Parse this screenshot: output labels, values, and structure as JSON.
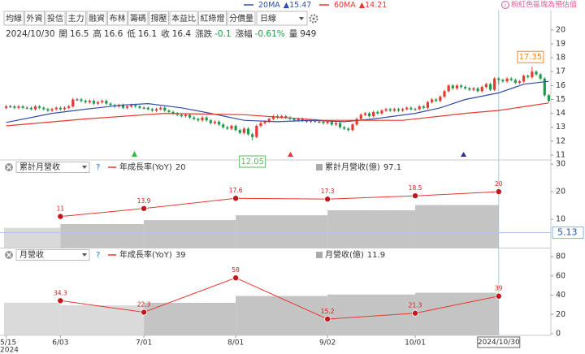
{
  "toolbar": {
    "tabs": [
      "均線",
      "外資",
      "投信",
      "主力",
      "融資",
      "布林",
      "籌碼",
      "撐壓",
      "本益比",
      "紅綠燈",
      "分價量"
    ],
    "interval": "日線"
  },
  "notice": "粉紅色區塊為預估值",
  "chart_data": [
    {
      "type": "candlestick",
      "info": {
        "date": "2024/10/30",
        "items": [
          {
            "label": "開",
            "value": 16.5
          },
          {
            "label": "高",
            "value": 16.6
          },
          {
            "label": "低",
            "value": 16.1
          },
          {
            "label": "收",
            "value": 16.4
          },
          {
            "label": "漲跌",
            "value": -0.1
          },
          {
            "label": "漲幅",
            "value": -0.61,
            "value_label": "-0.61%"
          },
          {
            "label": "量",
            "value": 949
          }
        ]
      },
      "up_color": "#e8382f",
      "down_color": "#1e9b4a",
      "x": [
        0,
        1,
        2,
        3,
        4,
        5,
        6,
        7,
        8,
        9,
        10,
        11,
        12,
        13,
        14,
        15,
        16,
        17,
        18,
        19,
        20,
        21,
        22,
        23,
        24,
        25,
        26,
        27,
        28,
        29,
        30,
        31,
        32,
        33,
        34,
        35,
        36,
        37,
        38,
        39,
        40,
        41,
        42,
        43,
        44,
        45,
        46,
        47,
        48,
        49,
        50,
        51,
        52,
        53,
        54,
        55,
        56,
        57,
        58,
        59,
        60,
        61,
        62,
        63,
        64,
        65,
        66,
        67,
        68,
        69,
        70,
        71,
        72,
        73,
        74,
        75,
        76,
        77,
        78,
        79,
        80,
        81,
        82,
        83,
        84,
        85,
        86,
        87,
        88,
        89,
        90,
        91,
        92,
        93,
        94,
        95,
        96,
        97,
        98,
        99,
        100,
        101,
        102,
        103,
        104,
        105,
        106,
        107,
        108,
        109,
        110,
        111,
        112,
        113,
        114,
        115,
        116,
        117,
        118,
        119,
        120,
        121,
        122,
        123,
        124,
        125,
        126,
        127,
        128,
        129,
        130
      ],
      "open": [
        14.4,
        14.5,
        14.5,
        14.4,
        14.5,
        14.4,
        14.4,
        14.3,
        14.5,
        14.4,
        14.3,
        14.2,
        14.3,
        14.4,
        14.3,
        14.4,
        14.5,
        15.0,
        15.0,
        14.9,
        14.8,
        14.9,
        14.7,
        14.8,
        14.9,
        14.7,
        14.6,
        14.5,
        14.6,
        14.4,
        14.5,
        14.6,
        14.5,
        14.4,
        14.4,
        14.3,
        14.2,
        14.3,
        14.4,
        14.2,
        14.1,
        14.0,
        13.9,
        13.8,
        13.9,
        13.7,
        13.6,
        13.5,
        13.7,
        13.5,
        13.3,
        13.4,
        13.2,
        13.0,
        12.9,
        13.1,
        12.8,
        12.6,
        12.9,
        12.5,
        12.3,
        13.1,
        13.3,
        13.4,
        13.6,
        13.8,
        13.7,
        13.8,
        13.7,
        13.6,
        13.5,
        13.6,
        13.5,
        13.4,
        13.5,
        13.4,
        13.4,
        13.3,
        13.4,
        13.2,
        13.3,
        13.0,
        12.9,
        12.8,
        13.2,
        13.6,
        13.9,
        14.0,
        13.8,
        14.1,
        14.0,
        14.2,
        14.3,
        14.2,
        14.3,
        14.2,
        14.3,
        14.4,
        14.3,
        14.3,
        14.5,
        14.4,
        14.8,
        15.0,
        14.9,
        15.2,
        15.6,
        16.0,
        15.8,
        16.0,
        15.9,
        15.8,
        15.7,
        15.8,
        15.6,
        15.9,
        16.1,
        15.7,
        16.5,
        16.4,
        16.3,
        16.5,
        16.4,
        16.2,
        16.3,
        16.7,
        16.6,
        17.0,
        16.8,
        16.5,
        15.3
      ],
      "high": [
        14.6,
        14.6,
        14.6,
        14.6,
        14.6,
        14.5,
        14.5,
        14.6,
        14.6,
        14.5,
        14.4,
        14.4,
        14.5,
        14.5,
        14.5,
        14.6,
        15.1,
        15.1,
        15.1,
        15.0,
        15.0,
        15.0,
        14.9,
        15.0,
        15.0,
        14.8,
        14.7,
        14.7,
        14.7,
        14.6,
        14.7,
        14.7,
        14.6,
        14.5,
        14.5,
        14.4,
        14.4,
        14.5,
        14.5,
        14.3,
        14.2,
        14.1,
        14.0,
        14.0,
        14.0,
        13.8,
        13.7,
        13.8,
        13.8,
        13.6,
        13.5,
        13.5,
        13.3,
        13.1,
        13.2,
        13.2,
        12.9,
        13.0,
        13.0,
        12.6,
        13.2,
        13.4,
        13.5,
        13.7,
        13.9,
        13.9,
        13.9,
        13.9,
        13.8,
        13.7,
        13.7,
        13.7,
        13.6,
        13.6,
        13.6,
        13.5,
        13.5,
        13.5,
        13.5,
        13.4,
        13.4,
        13.1,
        13.0,
        13.3,
        13.7,
        14.0,
        14.1,
        14.1,
        14.2,
        14.2,
        14.3,
        14.4,
        14.4,
        14.4,
        14.4,
        14.4,
        14.5,
        14.5,
        14.4,
        14.6,
        14.6,
        14.9,
        15.1,
        15.1,
        15.3,
        15.7,
        16.1,
        16.1,
        16.1,
        16.1,
        16.0,
        15.9,
        15.9,
        15.9,
        16.0,
        16.2,
        16.2,
        16.6,
        16.6,
        16.5,
        16.6,
        16.6,
        16.5,
        16.4,
        16.8,
        16.8,
        17.35,
        17.1,
        16.9,
        16.6,
        15.4
      ],
      "low": [
        14.3,
        14.4,
        14.3,
        14.3,
        14.3,
        14.3,
        14.2,
        14.2,
        14.3,
        14.2,
        14.1,
        14.1,
        14.2,
        14.2,
        14.2,
        14.3,
        14.4,
        14.9,
        14.8,
        14.7,
        14.7,
        14.6,
        14.6,
        14.7,
        14.6,
        14.5,
        14.4,
        14.4,
        14.3,
        14.3,
        14.4,
        14.4,
        14.3,
        14.3,
        14.2,
        14.1,
        14.1,
        14.2,
        14.1,
        14.0,
        13.9,
        13.8,
        13.7,
        13.7,
        13.6,
        13.5,
        13.4,
        13.4,
        13.4,
        13.2,
        13.2,
        13.1,
        12.9,
        12.8,
        12.8,
        12.7,
        12.5,
        12.5,
        12.4,
        12.05,
        12.2,
        13.0,
        13.2,
        13.3,
        13.5,
        13.6,
        13.6,
        13.6,
        13.5,
        13.4,
        13.4,
        13.4,
        13.3,
        13.3,
        13.3,
        13.3,
        13.2,
        13.2,
        13.1,
        13.1,
        12.9,
        12.8,
        12.7,
        12.7,
        13.1,
        13.5,
        13.8,
        13.7,
        13.7,
        13.9,
        13.9,
        14.1,
        14.1,
        14.1,
        14.1,
        14.1,
        14.2,
        14.2,
        14.2,
        14.2,
        14.3,
        14.3,
        14.7,
        14.8,
        14.8,
        15.1,
        15.5,
        15.7,
        15.7,
        15.8,
        15.7,
        15.6,
        15.6,
        15.5,
        15.5,
        15.8,
        15.6,
        15.6,
        16.1,
        16.2,
        16.2,
        16.3,
        16.1,
        16.1,
        16.2,
        16.5,
        16.5,
        16.7,
        16.4,
        15.2,
        14.8
      ],
      "close": [
        14.5,
        14.5,
        14.4,
        14.5,
        14.4,
        14.4,
        14.3,
        14.5,
        14.4,
        14.3,
        14.2,
        14.3,
        14.4,
        14.3,
        14.4,
        14.5,
        15.0,
        15.0,
        14.9,
        14.8,
        14.9,
        14.7,
        14.8,
        14.9,
        14.7,
        14.6,
        14.5,
        14.6,
        14.4,
        14.5,
        14.6,
        14.5,
        14.4,
        14.4,
        14.3,
        14.2,
        14.3,
        14.4,
        14.2,
        14.1,
        14.0,
        13.9,
        13.8,
        13.9,
        13.7,
        13.6,
        13.5,
        13.7,
        13.5,
        13.3,
        13.4,
        13.2,
        13.0,
        12.9,
        13.1,
        12.8,
        12.6,
        12.9,
        12.5,
        12.3,
        13.1,
        13.3,
        13.4,
        13.6,
        13.8,
        13.7,
        13.8,
        13.7,
        13.6,
        13.5,
        13.6,
        13.5,
        13.4,
        13.5,
        13.4,
        13.4,
        13.3,
        13.4,
        13.2,
        13.3,
        13.0,
        12.9,
        12.8,
        13.2,
        13.6,
        13.9,
        14.0,
        13.8,
        14.1,
        14.0,
        14.2,
        14.3,
        14.2,
        14.3,
        14.2,
        14.3,
        14.4,
        14.3,
        14.3,
        14.5,
        14.4,
        14.8,
        15.0,
        14.9,
        15.2,
        15.6,
        16.0,
        15.8,
        16.0,
        15.9,
        15.8,
        15.7,
        15.8,
        15.6,
        15.9,
        16.1,
        15.7,
        16.5,
        16.4,
        16.3,
        16.5,
        16.4,
        16.2,
        16.3,
        16.7,
        16.6,
        17.0,
        16.8,
        16.5,
        15.3,
        14.9
      ],
      "series": [
        {
          "name": "20MA",
          "legend_label": "▲15.47",
          "color": "#2f4fa8",
          "x": [
            0,
            11,
            19,
            28,
            34,
            42,
            49,
            57,
            65,
            73,
            81,
            88,
            98,
            104,
            110,
            118,
            124,
            130
          ],
          "values": [
            13.35,
            14.0,
            14.3,
            14.6,
            14.7,
            14.4,
            14.0,
            13.5,
            13.4,
            13.5,
            13.4,
            13.6,
            14.0,
            14.4,
            15.0,
            15.47,
            16.1,
            16.3
          ]
        },
        {
          "name": "60MA",
          "legend_label": "▲14.21",
          "color": "#e8382f",
          "x": [
            0,
            19,
            38,
            57,
            76,
            95,
            110,
            118,
            130
          ],
          "values": [
            13.1,
            13.6,
            14.0,
            13.9,
            13.5,
            13.5,
            14.0,
            14.21,
            14.75
          ]
        }
      ],
      "xlim": [
        -0.5,
        130.5
      ],
      "ylim": [
        10.65,
        20.4
      ],
      "yticks": [
        11,
        12,
        13,
        14,
        15,
        16,
        17,
        18,
        19,
        20
      ]
    },
    {
      "type": "bar_line",
      "selector": "累計月營收",
      "help": "?",
      "x": [
        13,
        33,
        55,
        77,
        98,
        118
      ],
      "series": [
        {
          "name": "年成長率(YoY)",
          "type": "line",
          "color": "#e8382f",
          "values": [
            11,
            13.9,
            17.6,
            17.3,
            18.5,
            20
          ]
        },
        {
          "name": "累計月營收(億)",
          "type": "bar",
          "axis": "y2",
          "color": "#b9b9b9",
          "colors": [
            "#d9d9d9",
            "#c4c4c4",
            "#c4c4c4",
            "#c4c4c4",
            "#c4c4c4",
            "#c4c4c4"
          ],
          "bins": [
            -0.5,
            13,
            33,
            55,
            77,
            98,
            118
          ],
          "values": [
            45.3,
            53.7,
            62.8,
            73.8,
            85.2,
            97.1
          ]
        }
      ],
      "xlim": [
        -0.5,
        130.5
      ],
      "ylim": [
        -0.3,
        31.5
      ],
      "yticks": [
        10,
        20,
        30
      ],
      "y2lim": [
        0,
        200
      ],
      "crosshair_y": 5.13
    },
    {
      "type": "bar_line",
      "selector": "月營收",
      "help": "?",
      "x": [
        13,
        33,
        55,
        77,
        98,
        118
      ],
      "series": [
        {
          "name": "年成長率(YoY)",
          "type": "line",
          "color": "#e8382f",
          "values": [
            34.3,
            22.3,
            58,
            15.2,
            21.3,
            39
          ]
        },
        {
          "name": "月營收(億)",
          "type": "bar",
          "axis": "y2",
          "color": "#b9b9b9",
          "colors": [
            "#dadada",
            "#dadada",
            "#c4c4c4",
            "#c4c4c4",
            "#c4c4c4",
            "#c4c4c4"
          ],
          "bins": [
            -0.5,
            13,
            33,
            55,
            77,
            98,
            118
          ],
          "values": [
            9.1,
            8.4,
            9.1,
            11.0,
            11.4,
            11.9
          ]
        }
      ],
      "xlim": [
        -0.5,
        130.5
      ],
      "ylim": [
        -1.7,
        89.4
      ],
      "yticks": [
        0,
        20,
        40,
        60,
        80
      ],
      "y2lim": [
        0,
        24.5
      ],
      "xticks": [
        {
          "value": 0,
          "label": "5/15"
        },
        {
          "value": 13,
          "label": "6/03"
        },
        {
          "value": 33,
          "label": "7/01"
        },
        {
          "value": 55,
          "label": "8/01"
        },
        {
          "value": 77,
          "label": "9/02"
        },
        {
          "value": 98,
          "label": "10/01"
        }
      ],
      "year_label": "2024",
      "crosshair": {
        "x": 118,
        "label": "2024/10/30"
      }
    }
  ]
}
